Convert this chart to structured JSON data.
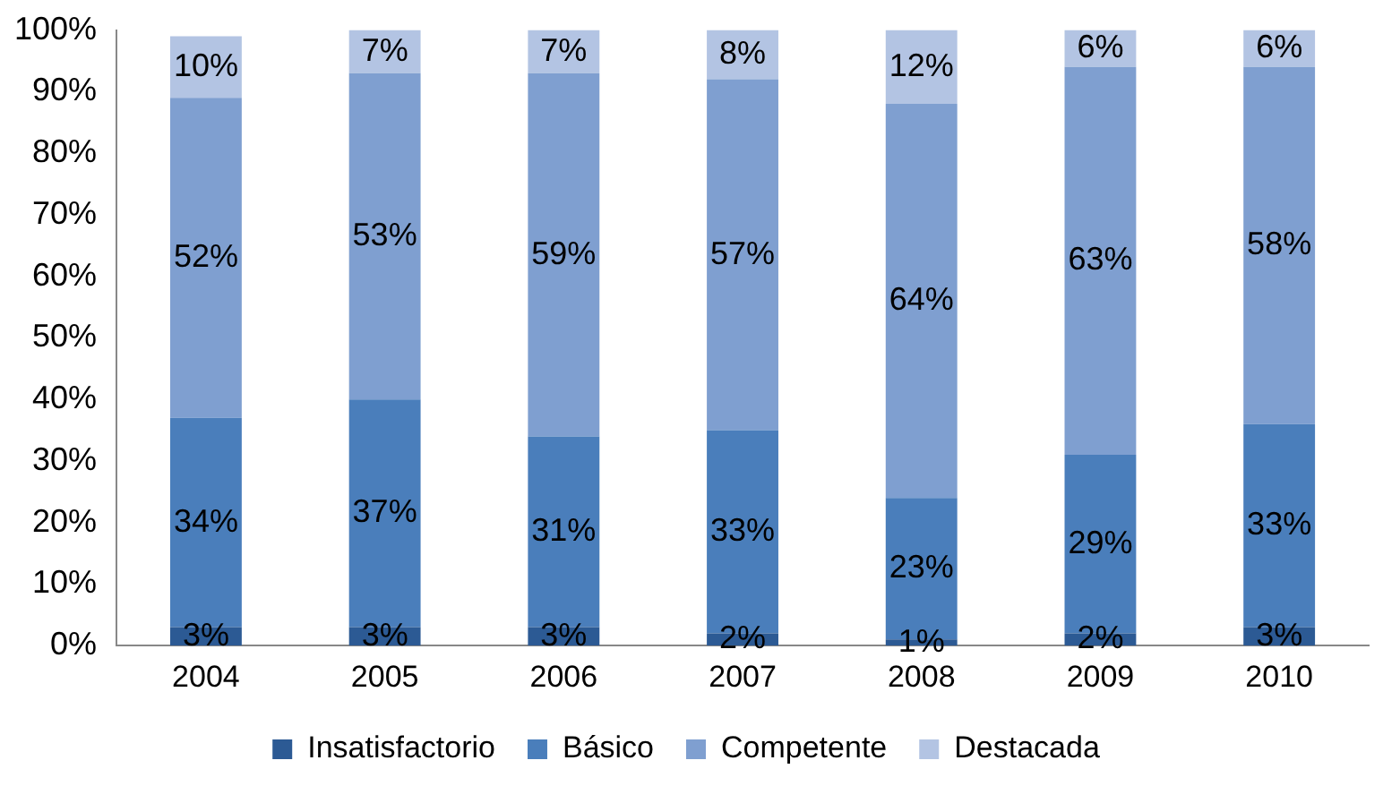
{
  "chart_data": {
    "type": "bar",
    "stacked": true,
    "categories": [
      "2004",
      "2005",
      "2006",
      "2007",
      "2008",
      "2009",
      "2010"
    ],
    "series": [
      {
        "name": "Insatisfactorio",
        "color": "#2c5a94",
        "values": [
          3,
          3,
          3,
          2,
          1,
          2,
          3
        ],
        "value_labels": [
          "3%",
          "3%",
          "3%",
          "2%",
          "1%",
          "2%",
          "3%"
        ]
      },
      {
        "name": "Básico",
        "color": "#4a7ebb",
        "values": [
          34,
          37,
          31,
          33,
          23,
          29,
          33
        ],
        "value_labels": [
          "34%",
          "37%",
          "31%",
          "33%",
          "23%",
          "29%",
          "33%"
        ]
      },
      {
        "name": "Competente",
        "color": "#7f9fd0",
        "values": [
          52,
          53,
          59,
          57,
          64,
          63,
          58
        ],
        "value_labels": [
          "52%",
          "53%",
          "59%",
          "57%",
          "64%",
          "63%",
          "58%"
        ]
      },
      {
        "name": "Destacada",
        "color": "#b3c4e3",
        "values": [
          10,
          7,
          7,
          8,
          12,
          6,
          6
        ],
        "value_labels": [
          "10%",
          "7%",
          "7%",
          "8%",
          "12%",
          "6%",
          "6%"
        ]
      }
    ],
    "ylim": [
      0,
      100
    ],
    "yticks": [
      {
        "value": 0,
        "label": "0%"
      },
      {
        "value": 10,
        "label": "10%"
      },
      {
        "value": 20,
        "label": "20%"
      },
      {
        "value": 30,
        "label": "30%"
      },
      {
        "value": 40,
        "label": "40%"
      },
      {
        "value": 50,
        "label": "50%"
      },
      {
        "value": 60,
        "label": "60%"
      },
      {
        "value": 70,
        "label": "70%"
      },
      {
        "value": 80,
        "label": "80%"
      },
      {
        "value": 90,
        "label": "90%"
      },
      {
        "value": 100,
        "label": "100%"
      }
    ],
    "grid": false,
    "legend": "bottom"
  }
}
